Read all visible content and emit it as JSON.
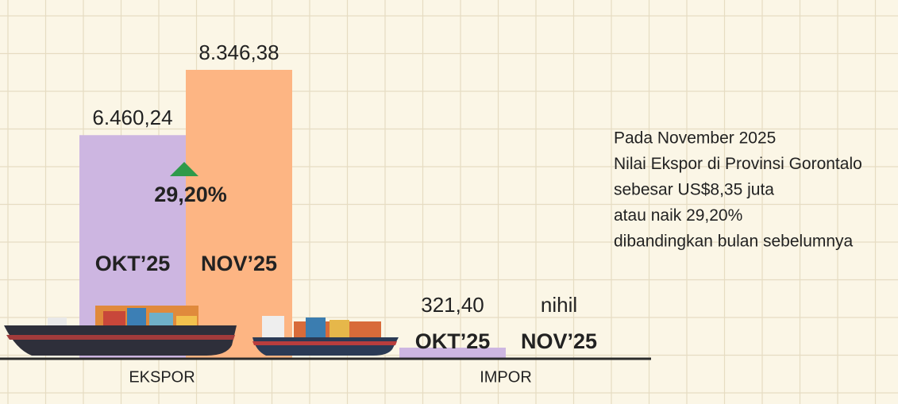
{
  "chart_data": {
    "type": "bar",
    "categories": [
      "EKSPOR",
      "IMPOR"
    ],
    "series": [
      {
        "name": "OKT’25",
        "color": "#cdb6e1",
        "label_color": "#7a3d9f",
        "values": [
          6460.24,
          321.4
        ],
        "value_labels": [
          "6.460,24",
          "321,40"
        ]
      },
      {
        "name": "NOV’25",
        "color": "#fdb583",
        "label_color": "#e8672c",
        "values": [
          8346.38,
          0
        ],
        "value_labels": [
          "8.346,38",
          "nihil"
        ]
      }
    ],
    "change_label": "29,20%",
    "change_color": "#2e9a4a",
    "note": [
      "Pada November 2025",
      "Nilai Ekspor di Provinsi Gorontalo",
      "sebesar US$8,35 juta",
      "atau naik 29,20%",
      "dibandingkan bulan sebelumnya"
    ]
  }
}
